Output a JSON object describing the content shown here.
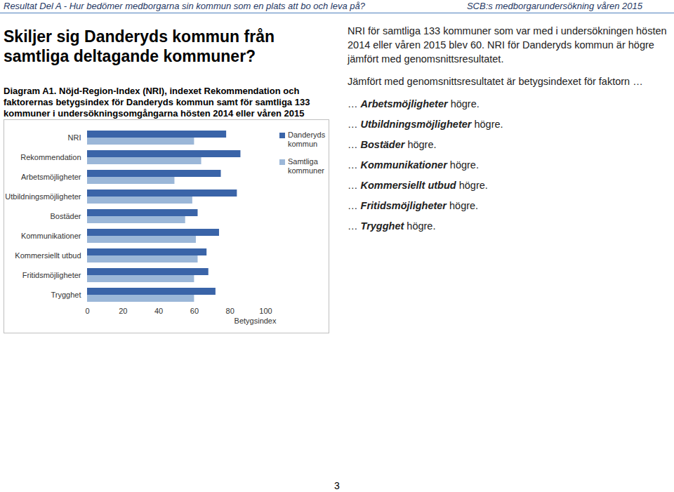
{
  "header": {
    "left": "Resultat Del A - Hur bedömer medborgarna sin kommun som en plats att bo och leva på?",
    "right": "SCB:s medborgarundersökning våren 2015"
  },
  "heading": "Skiljer sig Danderyds kommun från samtliga deltagande kommuner?",
  "caption": "Diagram A1. Nöjd-Region-Index (NRI), indexet Rekommendation och faktorernas betygsindex för Danderyds kommun samt för samtliga 133 kommuner i undersökningsomgångarna hösten 2014 eller våren 2015",
  "chart_data": {
    "type": "bar",
    "orientation": "horizontal",
    "categories": [
      "NRI",
      "Rekommendation",
      "Arbetsmöjligheter",
      "Utbildningsmöjligheter",
      "Bostäder",
      "Kommunikationer",
      "Kommersiellt utbud",
      "Fritidsmöjligheter",
      "Trygghet"
    ],
    "series": [
      {
        "name": "Danderyds kommun",
        "color": "#3a64a8",
        "values": [
          78,
          86,
          75,
          84,
          62,
          74,
          67,
          68,
          72
        ]
      },
      {
        "name": "Samtliga kommuner",
        "color": "#9bb7d8",
        "values": [
          60,
          64,
          49,
          59,
          55,
          61,
          62,
          60,
          60
        ]
      }
    ],
    "xlim": [
      0,
      100
    ],
    "xticks": [
      0,
      20,
      40,
      60,
      80,
      100
    ],
    "xlabel": "Betygsindex",
    "legend": "right",
    "grid": false
  },
  "paragraphs": [
    "NRI för samtliga 133 kommuner som var med i undersökningen hösten 2014 eller våren 2015 blev 60. NRI för Danderyds kommun är högre jämfört med genomsnittsresultatet.",
    "Jämfört med genomsnittsresultatet är betygsindexet för faktorn …"
  ],
  "items": [
    {
      "lead": "…",
      "factor": "Arbetsmöjligheter",
      "result": "högre."
    },
    {
      "lead": "…",
      "factor": "Utbildningsmöjligheter",
      "result": "högre."
    },
    {
      "lead": "…",
      "factor": "Bostäder",
      "result": "högre."
    },
    {
      "lead": "…",
      "factor": "Kommunikationer",
      "result": "högre."
    },
    {
      "lead": "…",
      "factor": "Kommersiellt utbud",
      "result": "högre."
    },
    {
      "lead": "…",
      "factor": "Fritidsmöjligheter",
      "result": "högre."
    },
    {
      "lead": "…",
      "factor": "Trygghet",
      "result": "högre."
    }
  ],
  "page_number": 3
}
